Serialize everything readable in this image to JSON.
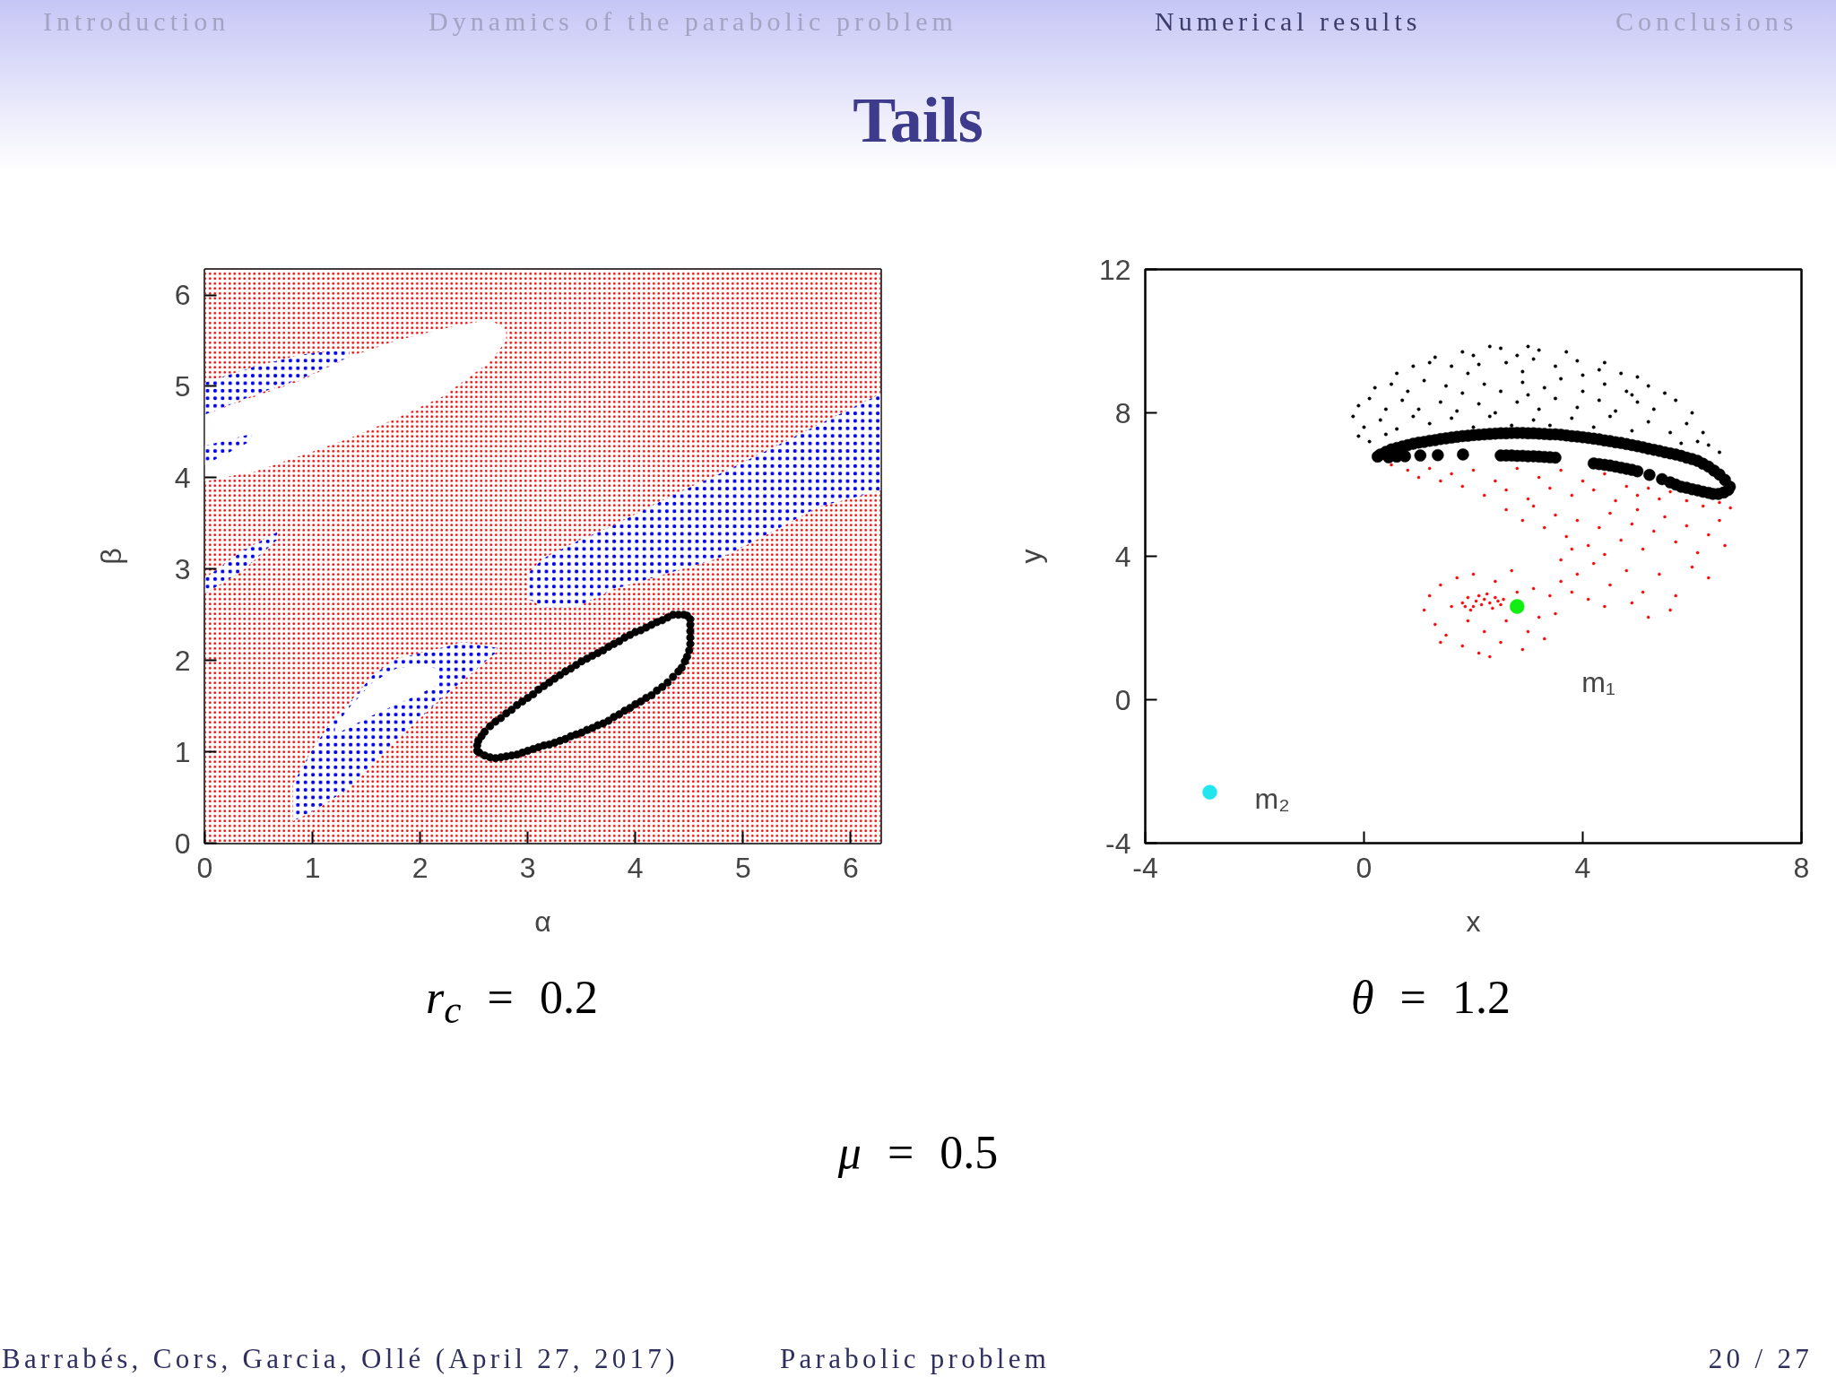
{
  "chart_data": [
    {
      "type": "area",
      "xlabel": "α",
      "ylabel": "β",
      "xlim": [
        0,
        6.28
      ],
      "ylim": [
        0,
        6.28
      ],
      "xticks": [
        0,
        1,
        2,
        3,
        4,
        5,
        6
      ],
      "yticks": [
        0,
        1,
        2,
        3,
        4,
        5,
        6
      ],
      "annotations": [
        "r$_{c}$ = 0.2"
      ],
      "series": [
        {
          "color": "#ee0000",
          "x": [
            0,
            6.28
          ],
          "values": [
            null,
            null
          ],
          "lower": [
            0,
            0
          ],
          "upper": [
            3.14,
            3.14
          ]
        },
        {
          "color": "#ee0000",
          "x": [
            0,
            6.28
          ],
          "values": [
            null,
            null
          ],
          "lower": [
            3.14,
            3.14
          ],
          "upper": [
            6.28,
            6.28
          ]
        },
        {
          "color": "#ffffff",
          "x": [
            0,
            0.47,
            0.91,
            1.34,
            1.78,
            2.21,
            2.65,
            2.8
          ],
          "values": [
            null,
            null,
            null,
            null,
            null,
            null,
            null,
            null
          ],
          "lower": [
            3.96,
            4.07,
            4.25,
            4.43,
            4.65,
            4.89,
            5.27,
            5.5
          ],
          "upper": [
            4.69,
            4.89,
            5.07,
            5.32,
            5.5,
            5.63,
            5.73,
            5.62
          ]
        },
        {
          "color": "#0000ee",
          "x": [
            0,
            0.47,
            0.91,
            1.34
          ],
          "values": [
            null,
            null,
            null,
            null
          ],
          "lower": [
            4.69,
            4.91,
            5.09,
            5.32
          ],
          "upper": [
            5.04,
            5.22,
            5.35,
            5.41
          ]
        },
        {
          "color": "#0000ee",
          "x": [
            0,
            0.43
          ],
          "values": [
            null,
            null
          ],
          "lower": [
            4.14,
            4.4
          ],
          "upper": [
            4.35,
            4.48
          ]
        },
        {
          "color": "#0000ee",
          "x": [
            0,
            0.35,
            0.68
          ],
          "values": [
            null,
            null,
            null
          ],
          "lower": [
            2.73,
            2.98,
            3.33
          ],
          "upper": [
            2.9,
            3.2,
            3.41
          ]
        },
        {
          "color": "#0000ee",
          "x": [
            3.0,
            3.15,
            3.45,
            3.8,
            4.35,
            4.83,
            5.26,
            5.7,
            6.28
          ],
          "values": [
            null,
            null,
            null,
            null,
            null,
            null,
            null,
            null,
            null
          ],
          "lower": [
            2.68,
            2.58,
            2.58,
            2.78,
            2.97,
            3.14,
            3.4,
            3.68,
            3.86
          ],
          "upper": [
            2.95,
            3.12,
            3.3,
            3.48,
            3.81,
            4.07,
            4.32,
            4.58,
            4.92
          ]
        },
        {
          "color": "#0000ee",
          "x": [
            0.82,
            0.99,
            1.17,
            1.34,
            1.56,
            1.78,
            2.21,
            2.39,
            2.71
          ],
          "values": [
            null,
            null,
            null,
            null,
            null,
            null,
            null,
            null,
            null
          ],
          "lower": [
            0.24,
            0.34,
            0.47,
            0.6,
            0.86,
            1.12,
            1.6,
            1.77,
            2.09
          ],
          "upper": [
            0.65,
            1.01,
            1.32,
            1.53,
            1.84,
            2.02,
            2.14,
            2.2,
            2.14
          ]
        },
        {
          "color": "#ffffff",
          "x": [
            1.21,
            1.34,
            1.56,
            1.78,
            1.99,
            2.15
          ],
          "values": [
            null,
            null,
            null,
            null,
            null,
            null
          ],
          "lower": [
            1.19,
            1.27,
            1.4,
            1.52,
            1.63,
            1.73
          ],
          "upper": [
            1.27,
            1.48,
            1.76,
            1.91,
            1.94,
            1.91
          ]
        },
        {
          "color": "#ffffff",
          "x": [
            2.53,
            2.65,
            3.08,
            3.52,
            3.95,
            4.3,
            4.48,
            4.51
          ],
          "values": [
            null,
            null,
            null,
            null,
            null,
            null,
            null,
            null
          ],
          "lower": [
            1.01,
            0.94,
            1.04,
            1.22,
            1.48,
            1.76,
            2.04,
            2.45
          ],
          "upper": [
            1.01,
            1.27,
            1.66,
            1.99,
            2.27,
            2.44,
            2.5,
            2.45
          ]
        },
        {
          "type": "scatter",
          "marker": "circle",
          "color": "#000000",
          "x": [
            2.53,
            2.55,
            2.6,
            2.65,
            2.7,
            2.75,
            2.8,
            2.85,
            2.9,
            2.95,
            3.0,
            3.05,
            3.1,
            3.15,
            3.2,
            3.25,
            3.3,
            3.35,
            3.4,
            3.45,
            3.5,
            3.55,
            3.6,
            3.65,
            3.7,
            3.75,
            3.8,
            3.85,
            3.9,
            3.95,
            4.0,
            4.05,
            4.1,
            4.15,
            4.2,
            4.25,
            4.3,
            4.35,
            4.4,
            4.43,
            4.46,
            4.48,
            4.5,
            4.51,
            4.51,
            4.51,
            4.51,
            4.51,
            2.53,
            2.54,
            2.57,
            2.6,
            2.65,
            2.7,
            2.75,
            2.8,
            2.85,
            2.9,
            2.95,
            3.0,
            3.05,
            3.1,
            3.15,
            3.2,
            3.25,
            3.3,
            3.35,
            3.4,
            3.45,
            3.5,
            3.55,
            3.6,
            3.65,
            3.7,
            3.75,
            3.8,
            3.85,
            3.9,
            3.95,
            4.0,
            4.05,
            4.1,
            4.15,
            4.2,
            4.25,
            4.3,
            4.35,
            4.4,
            4.45,
            4.48
          ],
          "values": [
            1.01,
            0.99,
            0.96,
            0.94,
            0.93,
            0.94,
            0.95,
            0.96,
            0.97,
            0.99,
            1.01,
            1.03,
            1.05,
            1.07,
            1.08,
            1.1,
            1.12,
            1.14,
            1.17,
            1.19,
            1.21,
            1.24,
            1.26,
            1.29,
            1.31,
            1.34,
            1.38,
            1.41,
            1.45,
            1.48,
            1.52,
            1.55,
            1.59,
            1.62,
            1.67,
            1.71,
            1.76,
            1.82,
            1.88,
            1.92,
            1.99,
            2.04,
            2.11,
            2.18,
            2.25,
            2.32,
            2.39,
            2.45,
            1.07,
            1.12,
            1.17,
            1.22,
            1.28,
            1.33,
            1.37,
            1.42,
            1.46,
            1.51,
            1.55,
            1.59,
            1.63,
            1.68,
            1.72,
            1.76,
            1.8,
            1.84,
            1.88,
            1.91,
            1.95,
            1.99,
            2.02,
            2.05,
            2.08,
            2.11,
            2.15,
            2.18,
            2.21,
            2.25,
            2.28,
            2.31,
            2.33,
            2.36,
            2.39,
            2.42,
            2.44,
            2.47,
            2.5,
            2.5,
            2.5,
            2.49
          ]
        }
      ]
    },
    {
      "type": "scatter",
      "xlabel": "x",
      "ylabel": "y",
      "xlim": [
        -4,
        8
      ],
      "ylim": [
        -4,
        12
      ],
      "xticks": [
        -4,
        0,
        4,
        8
      ],
      "yticks": [
        -4,
        0,
        4,
        8,
        12
      ],
      "marker": "circle",
      "annotations": [
        "θ = 1.2",
        "m₁",
        {
          "text": "m₂",
          "x": -2.82,
          "y": -2.58
        }
      ],
      "series": [
        {
          "color": "#000000",
          "x": [
            1.8,
            2.3,
            2.5,
            3.0,
            3.2,
            3.7,
            4.4,
            2.0,
            1.3,
            2.8,
            0.6,
            0.9,
            1.2,
            1.6,
            2.1,
            2.6,
            3.1,
            3.5,
            3.9,
            4.3,
            4.7,
            5.0,
            1.9,
            2.9,
            4.0,
            0.2,
            0.5,
            0.8,
            1.1,
            1.5,
            1.8,
            2.2,
            2.5,
            2.9,
            3.3,
            3.6,
            4.0,
            4.4,
            4.8,
            5.2,
            5.5,
            3.0,
            -0.1,
            0.1,
            0.4,
            0.7,
            1.0,
            1.4,
            1.7,
            2.1,
            2.4,
            2.8,
            3.2,
            3.5,
            3.9,
            4.3,
            4.6,
            5.0,
            5.3,
            5.7,
            6.0,
            4.9,
            -0.2,
            0.0,
            0.3,
            0.6,
            0.9,
            1.2,
            1.6,
            2.0,
            2.3,
            2.7,
            3.1,
            3.4,
            3.8,
            4.2,
            4.5,
            4.9,
            5.2,
            5.6,
            5.9,
            6.2,
            6.3,
            6.5,
            6.1,
            0.1,
            0.4,
            -0.1,
            5.8
          ],
          "values": [
            9.7,
            9.85,
            9.8,
            9.85,
            9.75,
            9.7,
            9.4,
            9.6,
            9.55,
            9.6,
            9.1,
            9.3,
            9.4,
            9.3,
            9.35,
            9.4,
            9.5,
            9.3,
            9.45,
            9.2,
            9.1,
            9.0,
            9.1,
            9.15,
            9.05,
            8.7,
            8.8,
            8.6,
            8.9,
            8.75,
            8.55,
            8.8,
            8.6,
            8.85,
            8.7,
            8.95,
            8.6,
            8.8,
            8.6,
            8.75,
            8.55,
            8.5,
            8.2,
            8.4,
            8.1,
            8.35,
            8.1,
            8.3,
            8.05,
            8.25,
            8.0,
            8.3,
            8.1,
            8.4,
            8.15,
            8.35,
            8.05,
            8.3,
            8.1,
            8.35,
            8.0,
            8.5,
            7.9,
            7.6,
            7.8,
            7.55,
            7.9,
            7.7,
            7.85,
            7.6,
            7.9,
            7.65,
            7.8,
            7.65,
            7.85,
            7.6,
            7.9,
            7.5,
            7.75,
            7.45,
            7.7,
            7.45,
            7.1,
            6.9,
            7.2,
            7.2,
            7.4,
            7.35,
            7.15
          ]
        },
        {
          "color": "#ff0000",
          "x": [
            0.5,
            0.8,
            1.0,
            1.2,
            1.4,
            1.6,
            1.8,
            2.0,
            2.2,
            2.4,
            2.6,
            2.8,
            3.0,
            3.2,
            3.4,
            3.6,
            3.8,
            4.0,
            4.2,
            4.4,
            4.6,
            4.8,
            5.0,
            5.2,
            5.4,
            5.6,
            5.9,
            6.2,
            6.5,
            6.7,
            2.6,
            2.9,
            3.1,
            3.3,
            3.5,
            3.7,
            3.9,
            4.1,
            4.3,
            4.5,
            4.7,
            4.9,
            5.1,
            5.3,
            5.5,
            5.7,
            5.9,
            6.1,
            6.3,
            6.5,
            6.6,
            5.0,
            4.4,
            3.8,
            3.6,
            3.9,
            4.2,
            4.5,
            4.8,
            5.1,
            5.4,
            5.7,
            6.0,
            6.3,
            4.4,
            4.9,
            5.6,
            5.2,
            3.8,
            4.1,
            1.1,
            1.2,
            1.3,
            1.4,
            1.5,
            1.6,
            1.7,
            1.8,
            1.9,
            2.0,
            2.1,
            2.2,
            2.4,
            2.5,
            2.6,
            2.7,
            2.9,
            3.0,
            3.1,
            3.2,
            3.3,
            3.4,
            3.5,
            2.3,
            1.4,
            3.6,
            2.8,
            1.8,
            1.9,
            2.0,
            2.05,
            2.1,
            2.15,
            2.2,
            2.3,
            2.35,
            2.4,
            2.5,
            1.95,
            2.25,
            2.45,
            1.85,
            2.55
          ],
          "values": [
            6.55,
            6.4,
            6.2,
            6.45,
            6.1,
            6.3,
            5.95,
            6.4,
            5.7,
            6.1,
            5.85,
            6.45,
            5.6,
            6.2,
            5.9,
            6.4,
            5.7,
            6.1,
            5.85,
            6.3,
            5.55,
            5.95,
            5.7,
            5.9,
            5.6,
            5.8,
            5.55,
            5.4,
            5.5,
            5.35,
            5.3,
            5.0,
            5.4,
            4.8,
            5.15,
            4.55,
            5.0,
            4.3,
            4.8,
            5.2,
            4.45,
            4.9,
            4.2,
            4.7,
            5.1,
            4.4,
            4.85,
            4.1,
            4.6,
            5.0,
            4.3,
            5.3,
            4.05,
            4.2,
            3.9,
            3.5,
            3.8,
            3.2,
            3.6,
            3.0,
            3.5,
            2.9,
            3.7,
            3.4,
            2.6,
            2.7,
            2.5,
            2.3,
            3.0,
            2.8,
            2.5,
            2.9,
            2.1,
            3.2,
            1.8,
            2.6,
            3.4,
            1.5,
            2.2,
            3.5,
            1.3,
            1.9,
            3.3,
            1.6,
            2.2,
            3.6,
            1.4,
            1.9,
            3.1,
            2.3,
            1.7,
            2.9,
            2.4,
            1.2,
            1.6,
            3.3,
            3.0,
            2.7,
            2.85,
            2.6,
            2.75,
            2.9,
            2.65,
            2.8,
            2.7,
            2.55,
            2.85,
            2.65,
            2.5,
            2.95,
            2.75,
            2.6,
            2.8
          ]
        },
        {
          "color": "#000000",
          "x": [
            0.3,
            0.4,
            0.5,
            0.6,
            0.7,
            0.8,
            0.9,
            1.0,
            1.1,
            1.2,
            1.3,
            1.4,
            1.5,
            1.6,
            1.7,
            1.8,
            1.9,
            2.0,
            2.1,
            2.2,
            2.3,
            2.4,
            2.5,
            2.6,
            2.7,
            2.8,
            2.9,
            3.0,
            3.1,
            3.2,
            3.3,
            3.4,
            3.5,
            3.6,
            3.7,
            3.8,
            3.9,
            4.0,
            4.1,
            4.2,
            4.3,
            4.4,
            4.5,
            4.6,
            4.7,
            4.8,
            4.9,
            5.0,
            5.1,
            5.2,
            5.3,
            5.4,
            5.5,
            5.6,
            5.7,
            5.8,
            5.9,
            6.0,
            6.1,
            6.2,
            6.3,
            6.4,
            6.5,
            6.6,
            6.69,
            6.66,
            6.58,
            6.48,
            6.38,
            6.3,
            6.2,
            6.1,
            6.0,
            5.9,
            5.8,
            5.7,
            5.6,
            5.45,
            5.22,
            5.0,
            4.9,
            4.8,
            4.7,
            4.6,
            4.5,
            4.4,
            4.3,
            4.2,
            3.5,
            3.4,
            3.3,
            3.2,
            3.1,
            3.0,
            2.9,
            2.8,
            2.7,
            2.6,
            2.5,
            1.81,
            1.35,
            1.03,
            0.75,
            0.25,
            0.45,
            0.6
          ],
          "values": [
            6.84,
            6.91,
            6.98,
            7.02,
            7.06,
            7.1,
            7.14,
            7.17,
            7.19,
            7.22,
            7.24,
            7.27,
            7.29,
            7.31,
            7.33,
            7.35,
            7.36,
            7.38,
            7.39,
            7.4,
            7.41,
            7.42,
            7.43,
            7.43,
            7.44,
            7.44,
            7.44,
            7.43,
            7.43,
            7.42,
            7.41,
            7.4,
            7.4,
            7.39,
            7.37,
            7.35,
            7.34,
            7.32,
            7.3,
            7.28,
            7.26,
            7.23,
            7.21,
            7.18,
            7.16,
            7.13,
            7.1,
            7.07,
            7.04,
            7.0,
            6.97,
            6.94,
            6.9,
            6.87,
            6.84,
            6.8,
            6.75,
            6.71,
            6.66,
            6.58,
            6.5,
            6.39,
            6.28,
            6.13,
            5.94,
            5.85,
            5.78,
            5.74,
            5.74,
            5.77,
            5.8,
            5.84,
            5.87,
            5.91,
            5.94,
            6.0,
            6.06,
            6.15,
            6.27,
            6.37,
            6.41,
            6.44,
            6.47,
            6.5,
            6.53,
            6.55,
            6.57,
            6.59,
            6.75,
            6.76,
            6.77,
            6.78,
            6.79,
            6.79,
            6.8,
            6.8,
            6.81,
            6.81,
            6.81,
            6.84,
            6.82,
            6.81,
            6.79,
            6.78,
            6.76,
            6.78
          ]
        },
        {
          "color": "#11ee11",
          "x": [
            2.8
          ],
          "values": [
            2.6
          ]
        },
        {
          "color": "#22e6ee",
          "x": [
            -2.82
          ],
          "values": [
            -2.58
          ]
        }
      ]
    },
    {
      "type": "other",
      "title": "Tails",
      "annotations": [
        "Introduction",
        "Dynamics of the parabolic problem",
        "Numerical results",
        "Conclusions",
        "μ = 0.5",
        "Barrabés, Cors, Garcia, Ollé (April 27, 2017)",
        "Parabolic problem",
        "20 / 27"
      ]
    }
  ]
}
